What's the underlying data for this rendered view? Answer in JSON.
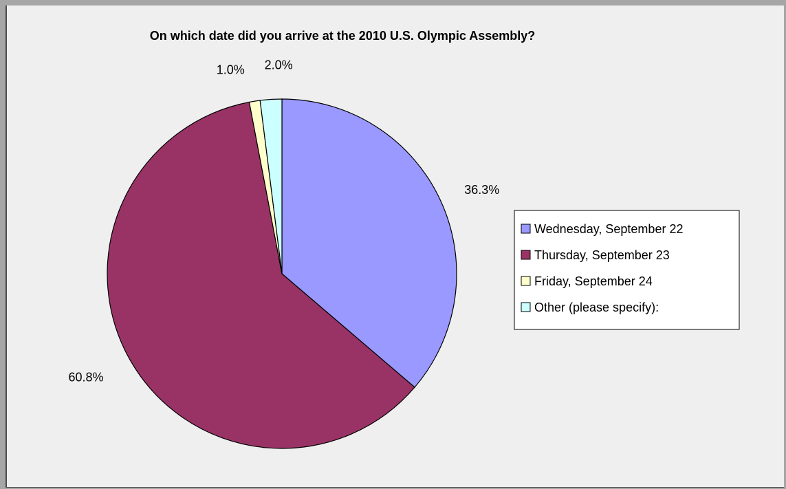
{
  "chart_data": {
    "type": "pie",
    "title": "On which date did you arrive at the 2010 U.S. Olympic Assembly?",
    "categories": [
      "Wednesday, September 22",
      "Thursday, September 23",
      "Friday, September 24",
      "Other (please specify):"
    ],
    "values": [
      36.3,
      60.8,
      1.0,
      2.0
    ],
    "labels": [
      "36.3%",
      "60.8%",
      "1.0%",
      "2.0%"
    ],
    "colors": [
      "#9999ff",
      "#993366",
      "#ffffcc",
      "#ccffff"
    ],
    "start_angle_deg": 0,
    "direction": "clockwise",
    "legend_position": "right"
  }
}
